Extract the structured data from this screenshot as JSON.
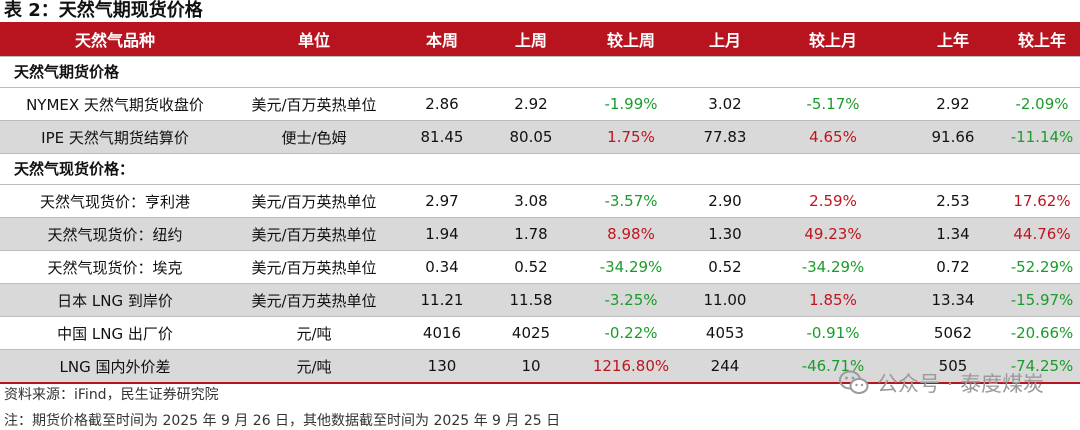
{
  "title": "表 2：天然气期现货价格",
  "headers": [
    "天然气品种",
    "单位",
    "本周",
    "上周",
    "较上周",
    "上月",
    "较上月",
    "上年",
    "较上年"
  ],
  "sections": [
    {
      "label": "天然气期货价格",
      "rows": [
        {
          "name": "NYMEX 天然气期货收盘价",
          "unit": "美元/百万英热单位",
          "this_week": "2.86",
          "last_week": "2.92",
          "wow": "-1.99%",
          "last_month": "3.02",
          "mom": "-5.17%",
          "last_year": "2.92",
          "yoy": "-2.09%"
        },
        {
          "name": "IPE 天然气期货结算价",
          "unit": "便士/色姆",
          "this_week": "81.45",
          "last_week": "80.05",
          "wow": "1.75%",
          "last_month": "77.83",
          "mom": "4.65%",
          "last_year": "91.66",
          "yoy": "-11.14%"
        }
      ]
    },
    {
      "label": "天然气现货价格：",
      "rows": [
        {
          "name": "天然气现货价：亨利港",
          "unit": "美元/百万英热单位",
          "this_week": "2.97",
          "last_week": "3.08",
          "wow": "-3.57%",
          "last_month": "2.90",
          "mom": "2.59%",
          "last_year": "2.53",
          "yoy": "17.62%"
        },
        {
          "name": "天然气现货价：纽约",
          "unit": "美元/百万英热单位",
          "this_week": "1.94",
          "last_week": "1.78",
          "wow": "8.98%",
          "last_month": "1.30",
          "mom": "49.23%",
          "last_year": "1.34",
          "yoy": "44.76%"
        },
        {
          "name": "天然气现货价：埃克",
          "unit": "美元/百万英热单位",
          "this_week": "0.34",
          "last_week": "0.52",
          "wow": "-34.29%",
          "last_month": "0.52",
          "mom": "-34.29%",
          "last_year": "0.72",
          "yoy": "-52.29%"
        },
        {
          "name": "日本 LNG 到岸价",
          "unit": "美元/百万英热单位",
          "this_week": "11.21",
          "last_week": "11.58",
          "wow": "-3.25%",
          "last_month": "11.00",
          "mom": "1.85%",
          "last_year": "13.34",
          "yoy": "-15.97%"
        },
        {
          "name": "中国 LNG 出厂价",
          "unit": "元/吨",
          "this_week": "4016",
          "last_week": "4025",
          "wow": "-0.22%",
          "last_month": "4053",
          "mom": "-0.91%",
          "last_year": "5062",
          "yoy": "-20.66%"
        },
        {
          "name": "LNG 国内外价差",
          "unit": "元/吨",
          "this_week": "130",
          "last_week": "10",
          "wow": "1216.80%",
          "last_month": "244",
          "mom": "-46.71%",
          "last_year": "505",
          "yoy": "-74.25%"
        }
      ]
    }
  ],
  "source": "资料来源：iFind，民生证券研究院",
  "note": "注：期货价格截至时间为 2025 年 9 月 26 日，其他数据截至时间为 2025 年 9 月 25 日",
  "watermark": "公众号 · 泰度煤炭",
  "watermark_icon": "wechat-icon",
  "colors": {
    "header_bg": "#b8141f",
    "positive": "#c0141e",
    "negative": "#1a9c2a",
    "stripe": "#d9d9d9"
  }
}
